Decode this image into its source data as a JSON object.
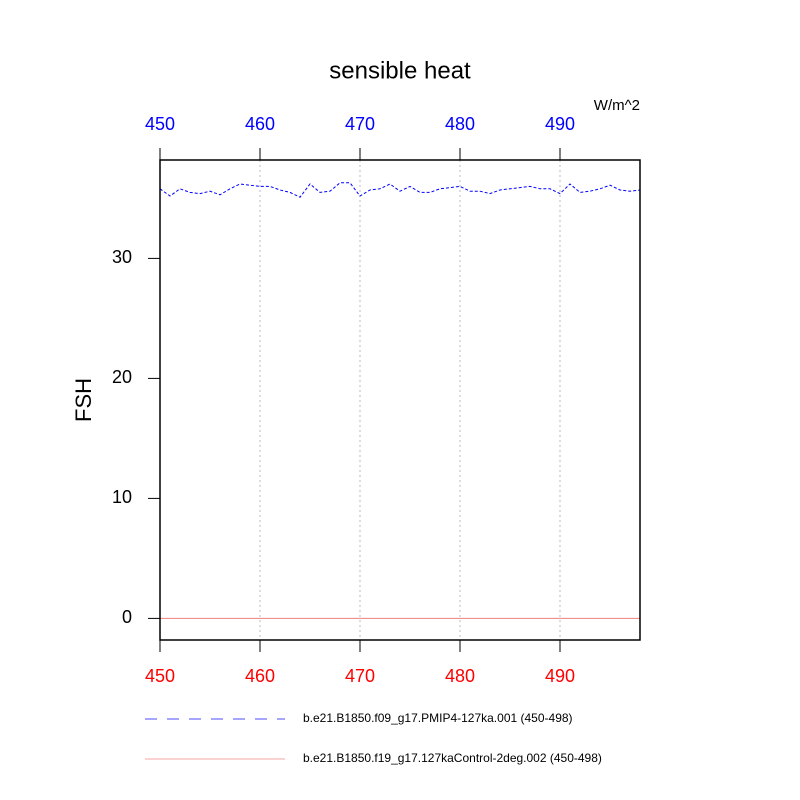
{
  "chart_data": {
    "type": "line",
    "title": "sensible heat",
    "units": "W/m^2",
    "y_label": "FSH",
    "x": [
      450,
      451,
      452,
      453,
      454,
      455,
      456,
      457,
      458,
      459,
      460,
      461,
      462,
      463,
      464,
      465,
      466,
      467,
      468,
      469,
      470,
      471,
      472,
      473,
      474,
      475,
      476,
      477,
      478,
      479,
      480,
      481,
      482,
      483,
      484,
      485,
      486,
      487,
      488,
      489,
      490,
      491,
      492,
      493,
      494,
      495,
      496,
      497,
      498
    ],
    "series": [
      {
        "name": "b.e21.B1850.f09_g17.PMIP4-127ka.001 (450-498)",
        "color": "#0000ff",
        "dash": true,
        "values": [
          35.8,
          35.2,
          35.8,
          35.5,
          35.4,
          35.6,
          35.3,
          35.8,
          36.2,
          36.1,
          36.0,
          36.0,
          35.7,
          35.5,
          35.1,
          36.2,
          35.5,
          35.6,
          36.3,
          36.3,
          35.2,
          35.7,
          35.8,
          36.2,
          35.6,
          36.0,
          35.5,
          35.5,
          35.8,
          35.9,
          36.0,
          35.6,
          35.6,
          35.4,
          35.7,
          35.8,
          35.9,
          36.0,
          35.8,
          35.8,
          35.4,
          36.2,
          35.5,
          35.6,
          35.8,
          36.1,
          35.7,
          35.6,
          35.7
        ]
      },
      {
        "name": "b.e21.B1850.f19_g17.127kaControl-2deg.002 (450-498)",
        "color": "#f08080",
        "dash": false,
        "values": [
          0,
          0,
          0,
          0,
          0,
          0,
          0,
          0,
          0,
          0,
          0,
          0,
          0,
          0,
          0,
          0,
          0,
          0,
          0,
          0,
          0,
          0,
          0,
          0,
          0,
          0,
          0,
          0,
          0,
          0,
          0,
          0,
          0,
          0,
          0,
          0,
          0,
          0,
          0,
          0,
          0,
          0,
          0,
          0,
          0,
          0,
          0,
          0,
          0
        ]
      }
    ],
    "xlim": [
      450,
      498
    ],
    "xticks": [
      450,
      460,
      470,
      480,
      490
    ],
    "ylim": [
      -1.8,
      38.2
    ],
    "yticks": [
      0,
      10,
      20,
      30
    ],
    "top_axis_color": "#0000ff",
    "bottom_axis_color": "#ff0000",
    "grid": true
  }
}
